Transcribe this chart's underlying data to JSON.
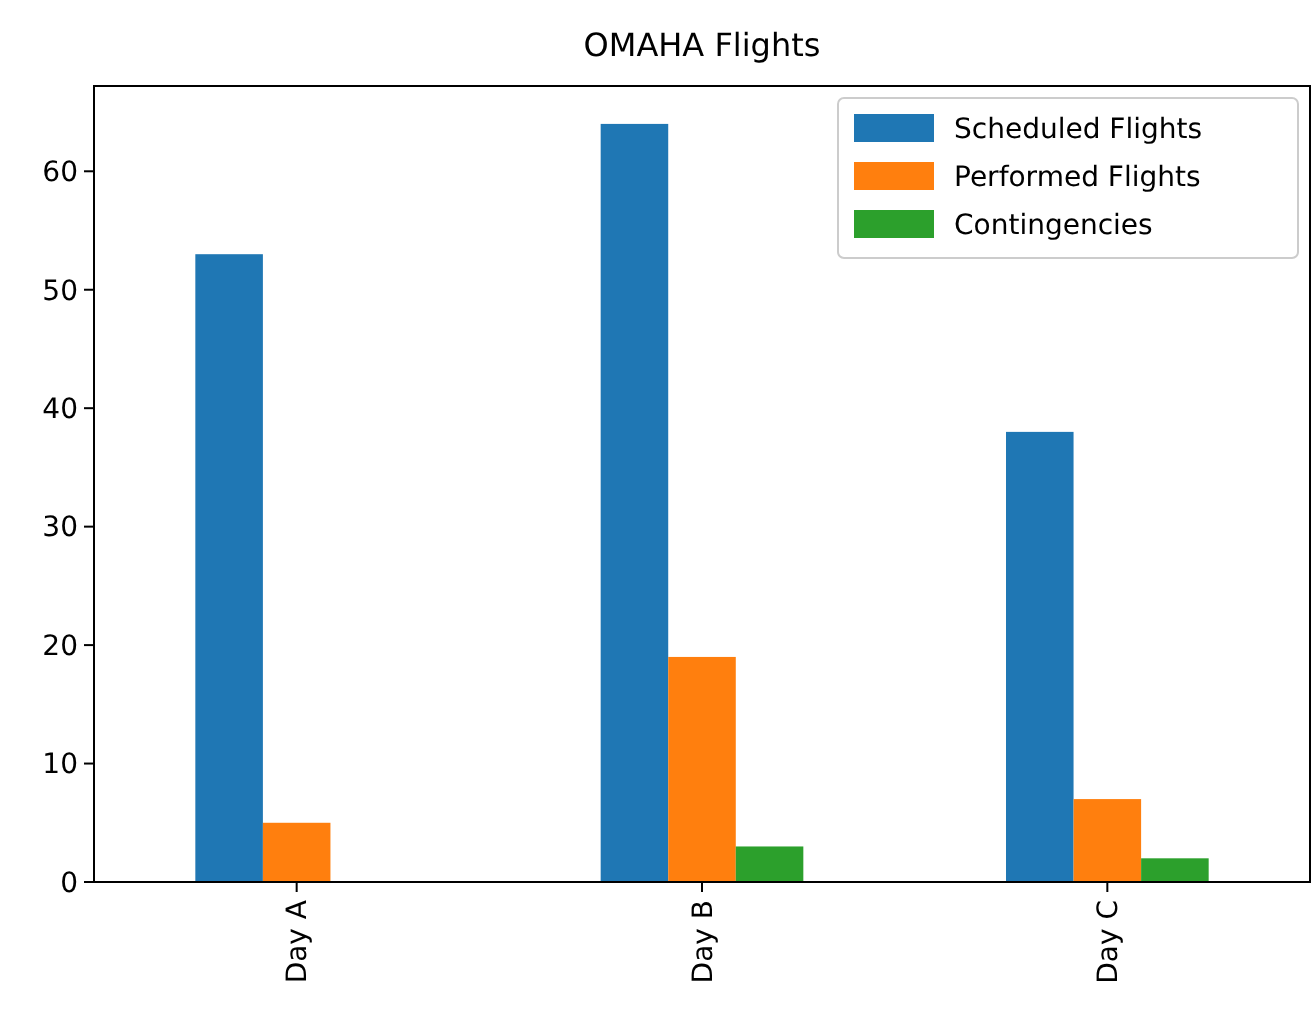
{
  "chart_data": {
    "type": "bar",
    "title": "OMAHA Flights",
    "categories": [
      "Day A",
      "Day B",
      "Day C"
    ],
    "series": [
      {
        "name": "Scheduled Flights",
        "color": "#1f77b4",
        "values": [
          53,
          64,
          38
        ]
      },
      {
        "name": "Performed Flights",
        "color": "#ff7f0e",
        "values": [
          5,
          19,
          7
        ]
      },
      {
        "name": "Contingencies",
        "color": "#2ca02c",
        "values": [
          0,
          3,
          2
        ]
      }
    ],
    "ylim": [
      0,
      67.2
    ],
    "yticks": [
      0,
      10,
      20,
      30,
      40,
      50,
      60
    ],
    "grid": false,
    "legend": "top right"
  }
}
